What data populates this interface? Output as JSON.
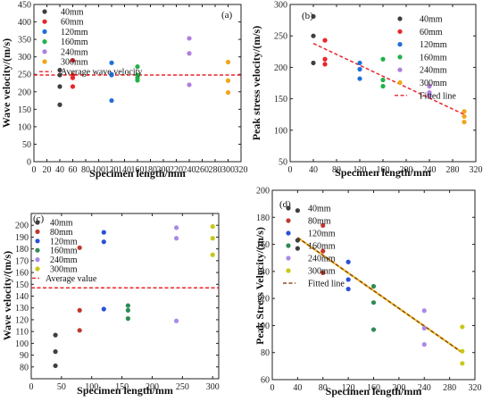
{
  "chart_data": [
    {
      "panel_label": "(a)",
      "type": "scatter",
      "xlabel": "Specimen length/mm",
      "ylabel": "Wave velocity/(m/s)",
      "xlim": [
        0,
        320
      ],
      "ylim": [
        0,
        450
      ],
      "xticks": [
        0,
        20,
        40,
        60,
        80,
        100,
        120,
        140,
        160,
        180,
        200,
        220,
        240,
        260,
        280,
        300,
        320
      ],
      "yticks": [
        0,
        50,
        100,
        150,
        200,
        250,
        300,
        350,
        400,
        450
      ],
      "legend_position": "top-left",
      "series": [
        {
          "name": "40mm",
          "color": "#3f3f3f",
          "x": [
            40,
            40,
            40,
            40
          ],
          "y": [
            262,
            248,
            215,
            163
          ]
        },
        {
          "name": "60mm",
          "color": "#e8262b",
          "x": [
            60,
            60,
            60,
            60
          ],
          "y": [
            290,
            248,
            240,
            215
          ]
        },
        {
          "name": "120mm",
          "color": "#1e6fd9",
          "x": [
            120,
            120,
            120,
            120
          ],
          "y": [
            283,
            250,
            248,
            175
          ]
        },
        {
          "name": "160mm",
          "color": "#22b14c",
          "x": [
            160,
            160,
            160,
            160
          ],
          "y": [
            272,
            248,
            240,
            233
          ]
        },
        {
          "name": "240mm",
          "color": "#b07de0",
          "x": [
            240,
            240,
            240
          ],
          "y": [
            353,
            310,
            220
          ]
        },
        {
          "name": "300mm",
          "color": "#f2a51a",
          "x": [
            300,
            300,
            300
          ],
          "y": [
            285,
            232,
            198
          ]
        }
      ],
      "reference_line": {
        "name": "Average wave velocity",
        "y": 248,
        "color": "#e8262b",
        "style": "dashed"
      }
    },
    {
      "panel_label": "(b)",
      "type": "scatter",
      "xlabel": "Specimen length/mm",
      "ylabel": "Peak stress velocity/(m/s)",
      "xlim": [
        0,
        320
      ],
      "ylim": [
        50,
        300
      ],
      "xticks": [
        0,
        40,
        80,
        120,
        160,
        200,
        240,
        280,
        320
      ],
      "yticks": [
        50,
        100,
        150,
        200,
        250,
        300
      ],
      "legend_position": "top-right",
      "series": [
        {
          "name": "40mm",
          "color": "#3f3f3f",
          "x": [
            40,
            40,
            40
          ],
          "y": [
            281,
            250,
            207
          ]
        },
        {
          "name": "60mm",
          "color": "#e8262b",
          "x": [
            60,
            60,
            60
          ],
          "y": [
            243,
            213,
            205
          ]
        },
        {
          "name": "120mm",
          "color": "#1e6fd9",
          "x": [
            120,
            120,
            120
          ],
          "y": [
            207,
            197,
            182
          ]
        },
        {
          "name": "160mm",
          "color": "#22b14c",
          "x": [
            160,
            160,
            160
          ],
          "y": [
            213,
            180,
            170
          ]
        },
        {
          "name": "240mm",
          "color": "#b07de0",
          "x": [
            240,
            240,
            240
          ],
          "y": [
            170,
            160,
            155
          ]
        },
        {
          "name": "300mm",
          "color": "#f2a51a",
          "x": [
            300,
            300,
            300
          ],
          "y": [
            130,
            122,
            113
          ]
        }
      ],
      "fitted_line": {
        "name": "Fitted line",
        "x": [
          40,
          300
        ],
        "y": [
          238,
          125
        ],
        "color": "#e8262b",
        "style": "dashed"
      }
    },
    {
      "panel_label": "(c)",
      "type": "scatter",
      "xlabel": "Specimen length/mm",
      "ylabel": "Wave velocity/(m/s)",
      "xlim": [
        0,
        310
      ],
      "ylim": [
        70,
        210
      ],
      "xticks": [
        0,
        50,
        100,
        150,
        200,
        250,
        300
      ],
      "yticks": [
        80,
        90,
        100,
        110,
        120,
        130,
        140,
        150,
        160,
        170,
        180,
        190,
        200
      ],
      "legend_position": "top-left",
      "series": [
        {
          "name": "40mm",
          "color": "#3f3f3f",
          "x": [
            40,
            40,
            40
          ],
          "y": [
            107,
            93,
            81
          ]
        },
        {
          "name": "80mm",
          "color": "#c0392b",
          "x": [
            80,
            80,
            80
          ],
          "y": [
            181,
            128,
            111
          ]
        },
        {
          "name": "120mm",
          "color": "#2b50d6",
          "x": [
            120,
            120,
            120
          ],
          "y": [
            194,
            186,
            129
          ]
        },
        {
          "name": "160mm",
          "color": "#2e8b57",
          "x": [
            160,
            160,
            160
          ],
          "y": [
            132,
            128,
            121
          ]
        },
        {
          "name": "240mm",
          "color": "#a98ae8",
          "x": [
            240,
            240,
            240
          ],
          "y": [
            198,
            189,
            119
          ]
        },
        {
          "name": "300mm",
          "color": "#c8c81a",
          "x": [
            300,
            300,
            300
          ],
          "y": [
            199,
            189,
            175
          ]
        }
      ],
      "reference_line": {
        "name": "Average value",
        "y": 147,
        "color": "#e8262b",
        "style": "dashed"
      }
    },
    {
      "panel_label": "(d)",
      "type": "scatter",
      "xlabel": "Specimen length/mm",
      "ylabel": "Peak Stress Velocity/(m/s)",
      "xlim": [
        0,
        320
      ],
      "ylim": [
        60,
        200
      ],
      "xticks": [
        0,
        40,
        80,
        120,
        160,
        200,
        240,
        280,
        320
      ],
      "yticks": [
        60,
        80,
        100,
        120,
        140,
        160,
        180,
        200
      ],
      "legend_position": "top-right",
      "series": [
        {
          "name": "40mm",
          "color": "#3f3f3f",
          "x": [
            40,
            40,
            40
          ],
          "y": [
            185,
            163,
            157
          ]
        },
        {
          "name": "80mm",
          "color": "#c0392b",
          "x": [
            80,
            80,
            80
          ],
          "y": [
            174,
            155,
            139
          ]
        },
        {
          "name": "120mm",
          "color": "#2b50d6",
          "x": [
            120,
            120,
            120
          ],
          "y": [
            147,
            134,
            127
          ]
        },
        {
          "name": "160mm",
          "color": "#2e8b57",
          "x": [
            160,
            160,
            160
          ],
          "y": [
            129,
            117,
            97
          ]
        },
        {
          "name": "240mm",
          "color": "#a98ae8",
          "x": [
            240,
            240,
            240
          ],
          "y": [
            111,
            98,
            86
          ]
        },
        {
          "name": "300mm",
          "color": "#c8c81a",
          "x": [
            300,
            300,
            300
          ],
          "y": [
            99,
            81,
            72
          ]
        }
      ],
      "fitted_line": {
        "name": "Fitted line",
        "x": [
          40,
          300
        ],
        "y": [
          165,
          80
        ],
        "color": "#8b4a1f",
        "style": "dashed",
        "underlay_color": "#f0c020"
      }
    }
  ]
}
